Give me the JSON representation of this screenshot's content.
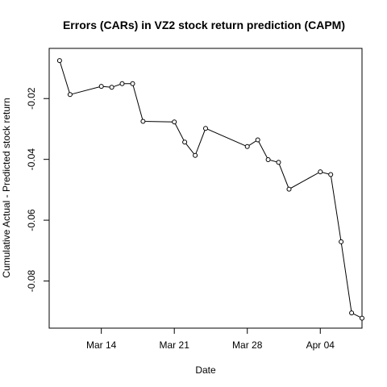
{
  "chart_data": {
    "type": "line",
    "title": "Errors (CARs) in VZ2 stock return prediction (CAPM)",
    "xlabel": "Date",
    "ylabel": "Cumulative Actual - Predicted stock return",
    "x_ticks": [
      {
        "label": "Mar 14",
        "date": "2016-03-14"
      },
      {
        "label": "Mar 21",
        "date": "2016-03-21"
      },
      {
        "label": "Mar 28",
        "date": "2016-03-28"
      },
      {
        "label": "Apr 04",
        "date": "2016-04-04"
      }
    ],
    "y_ticks": [
      -0.08,
      -0.06,
      -0.04,
      -0.02
    ],
    "xlim": [
      "2016-03-09",
      "2016-04-08"
    ],
    "ylim": [
      -0.0955,
      -0.0035
    ],
    "point_marker": "open-circle",
    "line_color": "#000000",
    "series": [
      {
        "x": [
          "2016-03-10",
          "2016-03-11",
          "2016-03-14",
          "2016-03-15",
          "2016-03-16",
          "2016-03-17",
          "2016-03-18",
          "2016-03-21",
          "2016-03-22",
          "2016-03-23",
          "2016-03-24",
          "2016-03-28",
          "2016-03-29",
          "2016-03-30",
          "2016-03-31",
          "2016-04-01",
          "2016-04-04",
          "2016-04-05",
          "2016-04-06",
          "2016-04-07",
          "2016-04-08"
        ],
        "y": [
          -0.0075,
          -0.0187,
          -0.016,
          -0.0163,
          -0.0151,
          -0.0151,
          -0.0275,
          -0.0277,
          -0.0343,
          -0.0387,
          -0.0298,
          -0.0358,
          -0.0336,
          -0.0401,
          -0.041,
          -0.0498,
          -0.0441,
          -0.045,
          -0.0671,
          -0.0905,
          -0.0922
        ]
      }
    ]
  }
}
